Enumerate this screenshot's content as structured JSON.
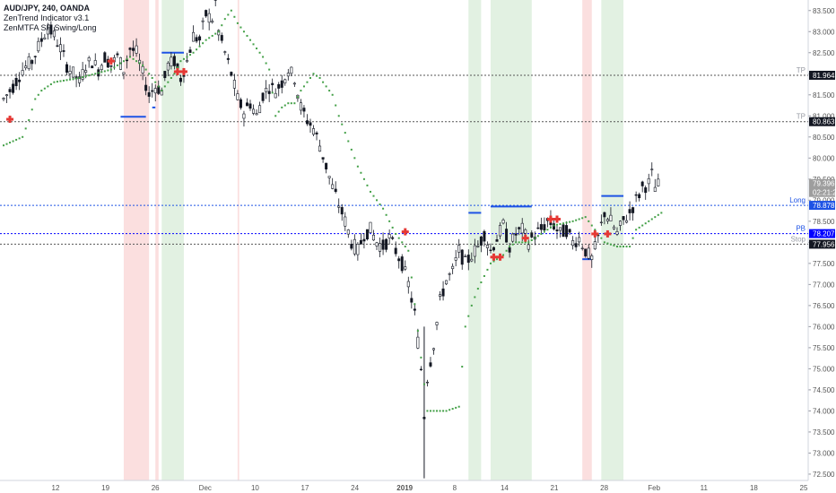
{
  "legend": {
    "symbol": "AUD/JPY, 240, OANDA",
    "indicator1": "ZenTrend Indicator v3.1",
    "indicator2": "ZenMTFA SR Swing/Long"
  },
  "chart_data": {
    "type": "candlestick",
    "ylim": [
      72.35,
      83.75
    ],
    "y_ticks": [
      "72.500",
      "73.000",
      "73.500",
      "74.000",
      "74.500",
      "75.000",
      "75.500",
      "76.000",
      "76.500",
      "77.000",
      "77.500",
      "78.000",
      "78.500",
      "79.000",
      "79.500",
      "80.000",
      "80.500",
      "81.000",
      "81.500",
      "82.000",
      "82.500",
      "83.000",
      "83.500"
    ],
    "x_ticks": [
      "12",
      "19",
      "26",
      "Dec",
      "10",
      "17",
      "24",
      "2019",
      "8",
      "14",
      "21",
      "28",
      "Feb",
      "11",
      "18",
      "25"
    ],
    "x_tick_bold": "2019",
    "price_path": [
      [
        0,
        81.4
      ],
      [
        3,
        81.7
      ],
      [
        6,
        82.1
      ],
      [
        9,
        82.3
      ],
      [
        12,
        82.8
      ],
      [
        14,
        83.1
      ],
      [
        16,
        82.9
      ],
      [
        18,
        82.6
      ],
      [
        20,
        82.2
      ],
      [
        22,
        82.0
      ],
      [
        24,
        81.8
      ],
      [
        26,
        82.2
      ],
      [
        28,
        82.3
      ],
      [
        30,
        82.1
      ],
      [
        32,
        82.4
      ],
      [
        34,
        82.2
      ],
      [
        36,
        82.4
      ],
      [
        38,
        82.1
      ],
      [
        40,
        82.6
      ],
      [
        42,
        82.5
      ],
      [
        44,
        82.0
      ],
      [
        46,
        81.5
      ],
      [
        48,
        81.7
      ],
      [
        50,
        81.6
      ],
      [
        52,
        82.2
      ],
      [
        54,
        82.3
      ],
      [
        56,
        81.9
      ],
      [
        58,
        82.3
      ],
      [
        60,
        82.9
      ],
      [
        62,
        82.8
      ],
      [
        64,
        83.4
      ],
      [
        66,
        83.3
      ],
      [
        67,
        83.7
      ],
      [
        68,
        83.0
      ],
      [
        70,
        82.5
      ],
      [
        72,
        82.0
      ],
      [
        74,
        81.4
      ],
      [
        76,
        81.1
      ],
      [
        78,
        81.3
      ],
      [
        80,
        81.0
      ],
      [
        82,
        81.5
      ],
      [
        84,
        81.7
      ],
      [
        86,
        81.6
      ],
      [
        88,
        81.8
      ],
      [
        90,
        82.1
      ],
      [
        92,
        81.9
      ],
      [
        94,
        81.2
      ],
      [
        96,
        80.9
      ],
      [
        98,
        80.7
      ],
      [
        100,
        80.3
      ],
      [
        102,
        79.8
      ],
      [
        104,
        79.3
      ],
      [
        106,
        78.9
      ],
      [
        108,
        78.5
      ],
      [
        110,
        78.0
      ],
      [
        112,
        77.8
      ],
      [
        114,
        78.2
      ],
      [
        116,
        78.3
      ],
      [
        118,
        78.0
      ],
      [
        120,
        77.9
      ],
      [
        122,
        78.1
      ],
      [
        124,
        77.8
      ],
      [
        126,
        77.5
      ],
      [
        128,
        77.0
      ],
      [
        130,
        76.3
      ],
      [
        132,
        75.0
      ],
      [
        133,
        73.9
      ],
      [
        134,
        74.8
      ],
      [
        136,
        75.6
      ],
      [
        138,
        76.6
      ],
      [
        140,
        77.1
      ],
      [
        142,
        77.3
      ],
      [
        144,
        77.8
      ],
      [
        146,
        77.5
      ],
      [
        148,
        77.7
      ],
      [
        150,
        77.9
      ],
      [
        152,
        78.2
      ],
      [
        154,
        77.8
      ],
      [
        156,
        78.1
      ],
      [
        158,
        78.4
      ],
      [
        160,
        77.9
      ],
      [
        162,
        78.2
      ],
      [
        164,
        78.3
      ],
      [
        166,
        78.0
      ],
      [
        168,
        78.2
      ],
      [
        170,
        78.3
      ],
      [
        172,
        78.5
      ],
      [
        174,
        78.4
      ],
      [
        176,
        78.2
      ],
      [
        178,
        78.3
      ],
      [
        180,
        78.0
      ],
      [
        182,
        78.1
      ],
      [
        184,
        77.8
      ],
      [
        186,
        77.6
      ],
      [
        188,
        78.1
      ],
      [
        190,
        78.7
      ],
      [
        192,
        78.5
      ],
      [
        194,
        78.2
      ],
      [
        196,
        78.5
      ],
      [
        198,
        78.7
      ],
      [
        200,
        79.0
      ],
      [
        202,
        79.3
      ],
      [
        204,
        79.4
      ],
      [
        205,
        79.6
      ],
      [
        206,
        79.3
      ],
      [
        208,
        79.4
      ]
    ],
    "x_min": 0,
    "x_max": 253,
    "stop_dots": [
      [
        0,
        80.3
      ],
      [
        6,
        80.5
      ],
      [
        8,
        80.9
      ],
      [
        10,
        81.4
      ],
      [
        12,
        81.6
      ],
      [
        16,
        81.8
      ],
      [
        24,
        81.9
      ],
      [
        34,
        82.1
      ],
      [
        40,
        82.4
      ],
      [
        44,
        82.2
      ],
      [
        48,
        81.8
      ],
      [
        50,
        81.6
      ],
      [
        52,
        81.8
      ],
      [
        54,
        82.0
      ],
      [
        56,
        82.3
      ],
      [
        60,
        82.5
      ],
      [
        64,
        82.8
      ],
      [
        68,
        83.0
      ],
      [
        70,
        83.3
      ],
      [
        72,
        83.5
      ],
      [
        74,
        83.2
      ],
      [
        76,
        83.0
      ],
      [
        78,
        82.8
      ],
      [
        80,
        82.6
      ],
      [
        82,
        82.4
      ],
      [
        84,
        82.1
      ],
      [
        86,
        81.0
      ],
      [
        88,
        81.2
      ],
      [
        90,
        81.3
      ],
      [
        92,
        81.3
      ],
      [
        94,
        81.6
      ],
      [
        96,
        81.8
      ],
      [
        98,
        82.0
      ],
      [
        100,
        81.9
      ],
      [
        102,
        81.7
      ],
      [
        104,
        81.5
      ],
      [
        106,
        81.0
      ],
      [
        108,
        80.6
      ],
      [
        110,
        80.2
      ],
      [
        112,
        79.8
      ],
      [
        114,
        79.5
      ],
      [
        116,
        79.2
      ],
      [
        118,
        79.0
      ],
      [
        120,
        78.8
      ],
      [
        122,
        78.5
      ],
      [
        124,
        78.2
      ],
      [
        126,
        78.0
      ],
      [
        128,
        77.8
      ],
      [
        134,
        74.0
      ],
      [
        138,
        74.0
      ],
      [
        140,
        74.0
      ],
      [
        144,
        74.1
      ],
      [
        146,
        76.0
      ],
      [
        148,
        76.5
      ],
      [
        150,
        76.9
      ],
      [
        152,
        77.2
      ],
      [
        154,
        77.5
      ],
      [
        156,
        77.6
      ],
      [
        158,
        77.7
      ],
      [
        160,
        77.9
      ],
      [
        162,
        78.0
      ],
      [
        166,
        78.0
      ],
      [
        170,
        78.2
      ],
      [
        174,
        78.4
      ],
      [
        180,
        78.5
      ],
      [
        184,
        78.6
      ],
      [
        190,
        78.0
      ],
      [
        194,
        77.9
      ],
      [
        198,
        77.9
      ],
      [
        200,
        78.3
      ],
      [
        204,
        78.5
      ],
      [
        208,
        78.7
      ]
    ],
    "red_zones": [
      [
        38,
        46
      ],
      [
        48,
        49
      ],
      [
        74,
        74.5
      ],
      [
        183,
        186
      ]
    ],
    "green_zones": [
      [
        50,
        57
      ],
      [
        147,
        151
      ],
      [
        154,
        167
      ],
      [
        189,
        196
      ]
    ],
    "sr_lines": [
      {
        "x0": 37,
        "x1": 45,
        "y": 80.98,
        "color": "#1e53e5"
      },
      {
        "x0": 47,
        "x1": 48,
        "y": 81.2,
        "color": "#1e53e5"
      },
      {
        "x0": 50,
        "x1": 57,
        "y": 82.5,
        "color": "#1e53e5"
      },
      {
        "x0": 147,
        "x1": 151,
        "y": 78.7,
        "color": "#1e53e5"
      },
      {
        "x0": 154,
        "x1": 167,
        "y": 78.85,
        "color": "#1e53e5"
      },
      {
        "x0": 189,
        "x1": 196,
        "y": 79.1,
        "color": "#1e53e5"
      },
      {
        "x0": 183,
        "x1": 186,
        "y": 77.6,
        "color": "#1e53e5"
      }
    ],
    "red_markers": [
      [
        2,
        80.92
      ],
      [
        34,
        82.3
      ],
      [
        55,
        82.05
      ],
      [
        57,
        82.05
      ],
      [
        127,
        78.25
      ],
      [
        155,
        77.65
      ],
      [
        157,
        77.65
      ],
      [
        165,
        78.1
      ],
      [
        173,
        78.55
      ],
      [
        175,
        78.55
      ],
      [
        187,
        78.2
      ],
      [
        191,
        78.2
      ]
    ],
    "levels": [
      {
        "y": 81.964,
        "label": "81.964",
        "tag": "TP",
        "tagColor": "#9598a1",
        "boxColor": "#131722",
        "line": "#555555",
        "dash": "2,2"
      },
      {
        "y": 80.863,
        "label": "80.863",
        "tag": "TP",
        "tagColor": "#9598a1",
        "boxColor": "#131722",
        "line": "#555555",
        "dash": "2,2"
      },
      {
        "y": 78.878,
        "label": "78.878",
        "tag": "Long",
        "tagColor": "#1e53e5",
        "boxColor": "#1e53e5",
        "line": "#1e53e5",
        "dash": "2,2"
      },
      {
        "y": 78.207,
        "label": "78.207",
        "tag": "PB",
        "tagColor": "#1e53e5",
        "boxColor": "#0000ff",
        "line": "#0000ff",
        "dash": "2,2"
      },
      {
        "y": 77.956,
        "label": "77.956",
        "tag": "Stop",
        "tagColor": "#9598a1",
        "boxColor": "#131722",
        "line": "#555555",
        "dash": "2,2"
      }
    ],
    "current_price": {
      "value": "79.396",
      "countdown": "02:21:24",
      "y": 79.396
    },
    "colors": {
      "candle": "#131722",
      "stop_dot": "#43a047",
      "red_zone": "#f8c5c5",
      "green_zone": "#cfe8cf",
      "marker": "#e53935"
    }
  }
}
